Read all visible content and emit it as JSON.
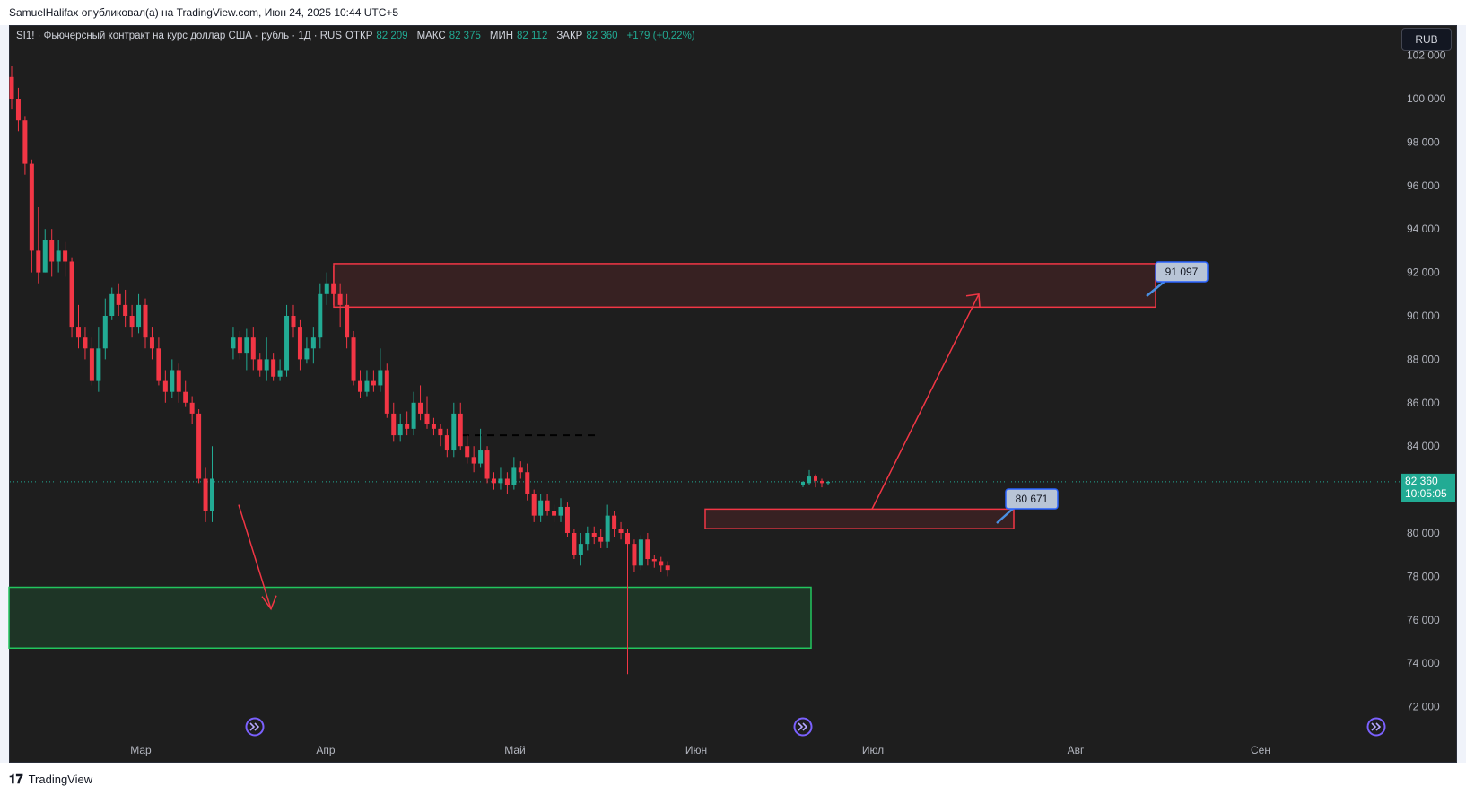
{
  "header": {
    "published_line": "SamuelHalifax опубликовал(а) на TradingView.com, Июн 24, 2025 10:44 UTC+5"
  },
  "legend": {
    "symbol_line": "SI1! · Фьючерсный контракт на курс доллар США - рубль · 1Д · RUS",
    "open_label": "ОТКР",
    "open_value": "82 209",
    "high_label": "МАКС",
    "high_value": "82 375",
    "low_label": "МИН",
    "low_value": "82 112",
    "close_label": "ЗАКР",
    "close_value": "82 360",
    "change": "+179 (+0,22%)"
  },
  "currency_button": "RUB",
  "footer": {
    "brand": "TradingView"
  },
  "colors": {
    "up": "#22ab94",
    "down": "#f23645",
    "background": "#1e1e1e",
    "support_zone": "#22c55e",
    "resistance_zone": "#f23645",
    "label_blue": "#2962ff"
  },
  "chart_data": {
    "type": "candlestick",
    "title": "SI1! · Фьючерсный контракт на курс доллар США - рубль · 1Д · RUS",
    "x_months": [
      "Мар",
      "Апр",
      "Май",
      "Июн",
      "Июл",
      "Авг",
      "Сен"
    ],
    "y_ticks": [
      "102 000",
      "100 000",
      "98 000",
      "96 000",
      "94 000",
      "92 000",
      "90 000",
      "88 000",
      "86 000",
      "84 000",
      "82 000",
      "80 000",
      "78 000",
      "76 000",
      "74 000",
      "72 000"
    ],
    "ylim": [
      71000,
      103000
    ],
    "last_price": {
      "value": "82 360",
      "countdown": "10:05:05"
    },
    "candles": [
      [
        101000,
        100000,
        101500,
        99500
      ],
      [
        100000,
        99000,
        100500,
        98500
      ],
      [
        99000,
        97000,
        99200,
        96500
      ],
      [
        97000,
        93000,
        97200,
        92000
      ],
      [
        93000,
        92000,
        95000,
        91500
      ],
      [
        92000,
        93500,
        94000,
        92000
      ],
      [
        93500,
        92500,
        94000,
        91800
      ],
      [
        92500,
        93000,
        93500,
        92000
      ],
      [
        93000,
        92500,
        93400,
        91800
      ],
      [
        92500,
        89500,
        92700,
        89000
      ],
      [
        89500,
        89000,
        90500,
        88500
      ],
      [
        89000,
        88500,
        89500,
        88000
      ],
      [
        88500,
        87000,
        89000,
        86800
      ],
      [
        87000,
        88500,
        89500,
        86500
      ],
      [
        88500,
        90000,
        90800,
        88000
      ],
      [
        90000,
        91000,
        91300,
        89800
      ],
      [
        91000,
        90500,
        91500,
        90000
      ],
      [
        90500,
        90000,
        91200,
        89500
      ],
      [
        90000,
        89500,
        90500,
        89000
      ],
      [
        89500,
        90500,
        91000,
        89200
      ],
      [
        90500,
        89000,
        90800,
        88500
      ],
      [
        89000,
        88500,
        89500,
        88000
      ],
      [
        88500,
        87000,
        89000,
        86800
      ],
      [
        87000,
        86500,
        87500,
        86000
      ],
      [
        86500,
        87500,
        88000,
        86200
      ],
      [
        87500,
        86500,
        87800,
        86000
      ],
      [
        86500,
        86000,
        87000,
        85800
      ],
      [
        86000,
        85500,
        86300,
        85000
      ],
      [
        85500,
        82500,
        85700,
        82300
      ],
      [
        82500,
        81000,
        83000,
        80500
      ],
      [
        81000,
        82500,
        84000,
        80500
      ],
      [
        88500,
        89000,
        89500,
        88000
      ],
      [
        89000,
        88300,
        89300,
        88000
      ],
      [
        88300,
        89000,
        89400,
        87500
      ],
      [
        89000,
        88000,
        89500,
        87500
      ],
      [
        88000,
        87500,
        88300,
        87200
      ],
      [
        87500,
        88000,
        89000,
        87000
      ],
      [
        88000,
        87200,
        88300,
        87000
      ],
      [
        87200,
        87500,
        88000,
        87000
      ],
      [
        87500,
        90000,
        90500,
        87200
      ],
      [
        90000,
        89500,
        90500,
        89000
      ],
      [
        89500,
        88000,
        89800,
        87500
      ],
      [
        88000,
        88500,
        89000,
        87800
      ],
      [
        88500,
        89000,
        89500,
        87800
      ],
      [
        89000,
        91000,
        91500,
        88500
      ],
      [
        91000,
        91500,
        92000,
        90500
      ],
      [
        91500,
        91000,
        92300,
        90500
      ],
      [
        91000,
        90500,
        91500,
        89500
      ],
      [
        90500,
        89000,
        91000,
        88500
      ],
      [
        89000,
        87000,
        89300,
        86800
      ],
      [
        87000,
        86500,
        87500,
        86200
      ],
      [
        86500,
        87000,
        87500,
        86300
      ],
      [
        87000,
        86800,
        87500,
        86500
      ],
      [
        86800,
        87500,
        88500,
        86500
      ],
      [
        87500,
        85500,
        87800,
        85300
      ],
      [
        85500,
        84500,
        86000,
        84200
      ],
      [
        84500,
        85000,
        85500,
        84200
      ],
      [
        85000,
        84800,
        85600,
        84500
      ],
      [
        84800,
        86000,
        86500,
        84500
      ],
      [
        86000,
        85500,
        86800,
        85200
      ],
      [
        85500,
        85000,
        86300,
        84800
      ],
      [
        85000,
        84800,
        85300,
        84500
      ],
      [
        84800,
        84500,
        85000,
        84000
      ],
      [
        84500,
        83800,
        84800,
        83500
      ],
      [
        83800,
        85500,
        86000,
        83500
      ],
      [
        85500,
        84000,
        86000,
        83800
      ],
      [
        84000,
        83500,
        84500,
        83200
      ],
      [
        83500,
        83200,
        84000,
        82800
      ],
      [
        83200,
        83800,
        84800,
        83000
      ],
      [
        83800,
        82500,
        84000,
        82300
      ],
      [
        82500,
        82300,
        82800,
        82000
      ],
      [
        82300,
        82500,
        83000,
        82000
      ],
      [
        82500,
        82200,
        82800,
        81800
      ],
      [
        82200,
        83000,
        83500,
        82000
      ],
      [
        83000,
        82800,
        83300,
        82500
      ],
      [
        82800,
        81800,
        83200,
        81500
      ],
      [
        81800,
        80800,
        82000,
        80500
      ],
      [
        80800,
        81500,
        81800,
        80500
      ],
      [
        81500,
        81000,
        81800,
        80800
      ],
      [
        81000,
        80800,
        81300,
        80500
      ],
      [
        80800,
        81200,
        81600,
        80500
      ],
      [
        81200,
        80000,
        81400,
        79800
      ],
      [
        80000,
        79000,
        80200,
        78800
      ],
      [
        79000,
        79500,
        80000,
        78500
      ],
      [
        79500,
        80000,
        80300,
        79200
      ],
      [
        80000,
        79800,
        80300,
        79500
      ],
      [
        79800,
        79600,
        80200,
        79300
      ],
      [
        79600,
        80800,
        81300,
        79300
      ],
      [
        80800,
        80200,
        81000,
        79800
      ],
      [
        80200,
        80000,
        80500,
        79700
      ],
      [
        80000,
        79500,
        80200,
        73500
      ],
      [
        79500,
        78500,
        79700,
        78200
      ],
      [
        78500,
        79700,
        79900,
        78300
      ],
      [
        79700,
        78800,
        80000,
        78500
      ],
      [
        78800,
        78700,
        79000,
        78400
      ],
      [
        78700,
        78500,
        78900,
        78200
      ],
      [
        78500,
        78300,
        78700,
        78000
      ]
    ],
    "recent_candles": [
      [
        82209,
        82360,
        82375,
        82112
      ],
      [
        82300,
        82600,
        82900,
        82200
      ],
      [
        82600,
        82400,
        82700,
        82100
      ],
      [
        82400,
        82300,
        82500,
        82100
      ],
      [
        82300,
        82360,
        82400,
        82200
      ]
    ],
    "dashed_level": 84500,
    "zones": [
      {
        "kind": "resistance",
        "top": 92400,
        "bottom": 90400
      },
      {
        "kind": "resistance",
        "top": 81100,
        "bottom": 80200
      },
      {
        "kind": "support",
        "top": 77500,
        "bottom": 74700
      }
    ],
    "target_labels": [
      "91 097",
      "80 671"
    ],
    "arrows": [
      {
        "from_price": 81300,
        "to_price": 76500,
        "direction": "down"
      },
      {
        "from_price": 81100,
        "to_price": 91000,
        "direction": "up"
      }
    ]
  }
}
